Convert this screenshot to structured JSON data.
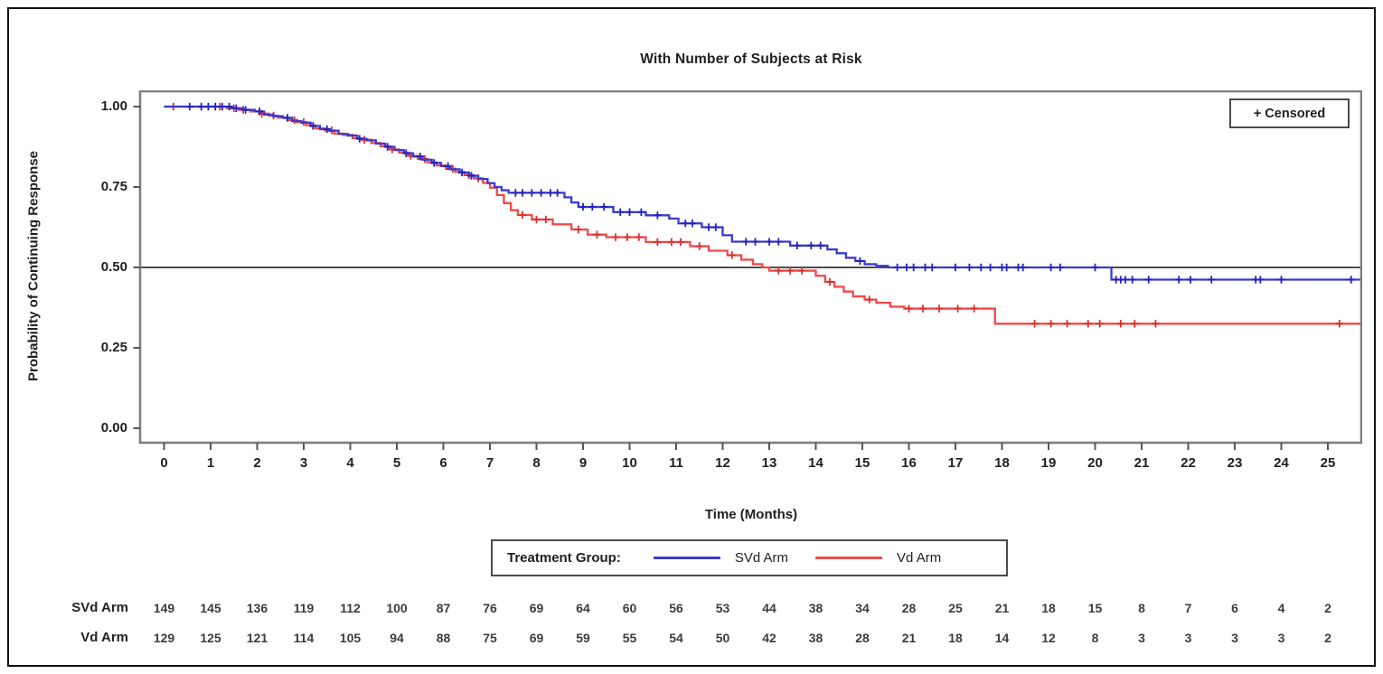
{
  "censored_box": {
    "label": "+ Censored"
  },
  "legend": {
    "label": "Treatment Group:"
  },
  "chart_data": {
    "type": "line",
    "variant": "kaplan_meier_step",
    "title": "With Number of Subjects at Risk",
    "xlabel": "Time (Months)",
    "ylabel": "Probability of Continuing Response",
    "xlim": [
      0,
      25.68
    ],
    "ylim": [
      0,
      1.0
    ],
    "grid": false,
    "reference_line_y": 0.5,
    "censored_marker": "+",
    "xticks": [
      0,
      1,
      2,
      3,
      4,
      5,
      6,
      7,
      8,
      9,
      10,
      11,
      12,
      13,
      14,
      15,
      16,
      17,
      18,
      19,
      20,
      21,
      22,
      23,
      24,
      25
    ],
    "yticks": [
      1.0,
      0.75,
      0.5,
      0.25,
      0.0
    ],
    "ytick_labels": [
      "1.00",
      "0.75",
      "0.50",
      "0.25",
      "0.00"
    ],
    "frame_color": "#7f7f7f",
    "reference_line_color": "#4d4d4d",
    "legend_entries": [
      {
        "name": "SVd Arm",
        "color": "#3a3ace"
      },
      {
        "name": "Vd Arm",
        "color": "#ee4949"
      }
    ],
    "series": [
      {
        "name": "SVd Arm",
        "color": "#3a3ace",
        "censor_color": "#2323bd",
        "start_probability": 1.0,
        "steps": [
          [
            1.45,
            0.995
          ],
          [
            1.7,
            0.99
          ],
          [
            1.95,
            0.985
          ],
          [
            2.15,
            0.975
          ],
          [
            2.35,
            0.97
          ],
          [
            2.55,
            0.965
          ],
          [
            2.75,
            0.955
          ],
          [
            2.95,
            0.95
          ],
          [
            3.15,
            0.94
          ],
          [
            3.35,
            0.93
          ],
          [
            3.55,
            0.925
          ],
          [
            3.75,
            0.915
          ],
          [
            3.95,
            0.91
          ],
          [
            4.15,
            0.9
          ],
          [
            4.35,
            0.895
          ],
          [
            4.55,
            0.885
          ],
          [
            4.75,
            0.875
          ],
          [
            4.95,
            0.865
          ],
          [
            5.15,
            0.855
          ],
          [
            5.35,
            0.845
          ],
          [
            5.55,
            0.835
          ],
          [
            5.75,
            0.825
          ],
          [
            5.95,
            0.815
          ],
          [
            6.15,
            0.805
          ],
          [
            6.35,
            0.795
          ],
          [
            6.55,
            0.785
          ],
          [
            6.75,
            0.775
          ],
          [
            6.95,
            0.762
          ],
          [
            7.1,
            0.75
          ],
          [
            7.25,
            0.74
          ],
          [
            7.4,
            0.732
          ],
          [
            8.6,
            0.718
          ],
          [
            8.75,
            0.702
          ],
          [
            8.9,
            0.688
          ],
          [
            9.65,
            0.672
          ],
          [
            10.35,
            0.662
          ],
          [
            10.85,
            0.652
          ],
          [
            11.05,
            0.637
          ],
          [
            11.55,
            0.625
          ],
          [
            12.0,
            0.6
          ],
          [
            12.2,
            0.58
          ],
          [
            13.45,
            0.568
          ],
          [
            14.25,
            0.556
          ],
          [
            14.45,
            0.544
          ],
          [
            14.65,
            0.53
          ],
          [
            14.85,
            0.52
          ],
          [
            15.05,
            0.51
          ],
          [
            15.3,
            0.505
          ],
          [
            15.55,
            0.5
          ],
          [
            20.35,
            0.462
          ]
        ],
        "censor_times": [
          0.55,
          0.8,
          0.95,
          1.1,
          1.25,
          1.4,
          1.55,
          1.75,
          2.05,
          2.65,
          3.2,
          3.5,
          4.2,
          4.8,
          5.2,
          5.5,
          5.8,
          6.1,
          6.4,
          6.6,
          7.55,
          7.7,
          7.9,
          8.1,
          8.3,
          8.45,
          9.0,
          9.2,
          9.45,
          9.8,
          10.0,
          10.25,
          10.6,
          11.2,
          11.35,
          11.7,
          11.85,
          12.5,
          12.7,
          13.0,
          13.2,
          13.6,
          13.9,
          14.1,
          14.95,
          15.75,
          15.95,
          16.1,
          16.35,
          16.5,
          17.0,
          17.3,
          17.55,
          17.75,
          18.0,
          18.1,
          18.35,
          18.45,
          19.05,
          19.25,
          20.0,
          20.45,
          20.55,
          20.65,
          20.8,
          21.15,
          21.8,
          22.05,
          22.5,
          23.45,
          23.55,
          24.0,
          25.5
        ]
      },
      {
        "name": "Vd Arm",
        "color": "#ee4949",
        "censor_color": "#d92f2f",
        "start_probability": 1.0,
        "steps": [
          [
            1.35,
            0.995
          ],
          [
            1.6,
            0.99
          ],
          [
            1.85,
            0.985
          ],
          [
            2.05,
            0.978
          ],
          [
            2.25,
            0.972
          ],
          [
            2.45,
            0.966
          ],
          [
            2.65,
            0.958
          ],
          [
            2.85,
            0.952
          ],
          [
            3.05,
            0.942
          ],
          [
            3.25,
            0.932
          ],
          [
            3.45,
            0.926
          ],
          [
            3.65,
            0.916
          ],
          [
            3.85,
            0.912
          ],
          [
            4.05,
            0.902
          ],
          [
            4.25,
            0.897
          ],
          [
            4.45,
            0.887
          ],
          [
            4.65,
            0.877
          ],
          [
            4.85,
            0.867
          ],
          [
            5.05,
            0.857
          ],
          [
            5.25,
            0.847
          ],
          [
            5.45,
            0.837
          ],
          [
            5.65,
            0.827
          ],
          [
            5.85,
            0.817
          ],
          [
            6.05,
            0.807
          ],
          [
            6.25,
            0.797
          ],
          [
            6.45,
            0.787
          ],
          [
            6.65,
            0.777
          ],
          [
            6.85,
            0.763
          ],
          [
            7.0,
            0.748
          ],
          [
            7.15,
            0.725
          ],
          [
            7.3,
            0.7
          ],
          [
            7.45,
            0.678
          ],
          [
            7.6,
            0.663
          ],
          [
            7.9,
            0.649
          ],
          [
            8.35,
            0.634
          ],
          [
            8.75,
            0.618
          ],
          [
            9.1,
            0.602
          ],
          [
            9.5,
            0.594
          ],
          [
            10.35,
            0.579
          ],
          [
            11.3,
            0.566
          ],
          [
            11.7,
            0.552
          ],
          [
            12.1,
            0.538
          ],
          [
            12.4,
            0.524
          ],
          [
            12.65,
            0.51
          ],
          [
            12.85,
            0.5
          ],
          [
            13.0,
            0.49
          ],
          [
            14.0,
            0.474
          ],
          [
            14.2,
            0.455
          ],
          [
            14.4,
            0.44
          ],
          [
            14.6,
            0.425
          ],
          [
            14.8,
            0.41
          ],
          [
            15.05,
            0.4
          ],
          [
            15.3,
            0.39
          ],
          [
            15.6,
            0.378
          ],
          [
            15.9,
            0.372
          ],
          [
            17.85,
            0.325
          ]
        ],
        "censor_times": [
          0.2,
          1.2,
          1.5,
          1.7,
          2.1,
          2.35,
          2.8,
          3.0,
          3.6,
          4.3,
          4.9,
          5.3,
          5.6,
          6.2,
          6.55,
          6.75,
          7.7,
          8.0,
          8.2,
          8.9,
          9.3,
          9.7,
          9.95,
          10.2,
          10.6,
          10.9,
          11.1,
          11.5,
          12.2,
          13.2,
          13.45,
          13.7,
          14.3,
          15.15,
          16.0,
          16.3,
          16.65,
          17.05,
          17.4,
          18.7,
          19.05,
          19.4,
          19.85,
          20.1,
          20.55,
          20.85,
          21.3,
          25.25
        ]
      }
    ]
  },
  "at_risk": {
    "rows": [
      {
        "label": "SVd Arm",
        "values": [
          149,
          145,
          136,
          119,
          112,
          100,
          87,
          76,
          69,
          64,
          60,
          56,
          53,
          44,
          38,
          34,
          28,
          25,
          21,
          18,
          15,
          8,
          7,
          6,
          4,
          2
        ]
      },
      {
        "label": "Vd Arm",
        "values": [
          129,
          125,
          121,
          114,
          105,
          94,
          88,
          75,
          69,
          59,
          55,
          54,
          50,
          42,
          38,
          28,
          21,
          18,
          14,
          12,
          8,
          3,
          3,
          3,
          3,
          2
        ]
      }
    ]
  }
}
